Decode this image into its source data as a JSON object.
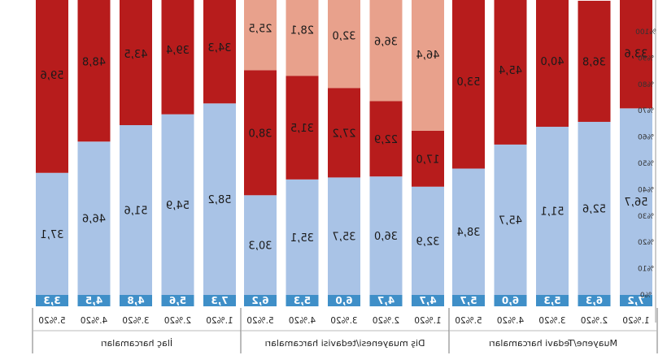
{
  "chart_data": {
    "type": "bar",
    "stacked": true,
    "orientation": "mirrored",
    "y_axis_ticks": [
      "%0",
      "%10",
      "%20",
      "%30",
      "%40",
      "%50",
      "%60",
      "%70",
      "%80",
      "%90",
      "%100"
    ],
    "ylim": [
      0,
      100
    ],
    "groups": [
      {
        "label": "İlaç harcamaları",
        "categories": [
          "5.%20",
          "4.%20",
          "3.%20",
          "2.%20",
          "1.%20"
        ],
        "base_band": [
          3.3,
          4.5,
          4.8,
          5.6,
          7.3
        ],
        "light_blue": [
          37.1,
          46.6,
          51.6,
          54.9,
          58.2
        ],
        "dark_red": [
          59.6,
          48.8,
          43.5,
          39.4,
          34.3
        ],
        "light_red": [
          null,
          null,
          null,
          null,
          null
        ]
      },
      {
        "label": "Diş muayenesi/tedavisi harcamaları",
        "categories": [
          "5.%20",
          "4.%20",
          "3.%20",
          "2.%20",
          "1.%20"
        ],
        "base_band": [
          6.2,
          5.3,
          6.0,
          4.7,
          4.7
        ],
        "light_blue": [
          30.3,
          35.1,
          35.7,
          36.0,
          32.9
        ],
        "dark_red": [
          38.0,
          31.5,
          27.2,
          22.9,
          17.0
        ],
        "light_red": [
          25.5,
          28.1,
          32.0,
          36.6,
          46.4
        ]
      },
      {
        "label": "Muayene/Tedavi harcamaları",
        "categories": [
          "5.%20",
          "4.%20",
          "3.%20",
          "2.%20",
          "1.%20"
        ],
        "base_band": [
          5.7,
          6.0,
          5.3,
          6.3,
          7.2
        ],
        "light_blue": [
          38.4,
          45.7,
          51.1,
          52.6,
          56.7
        ],
        "dark_red": [
          53.0,
          45.4,
          40.0,
          36.8,
          33.6
        ],
        "light_red": [
          null,
          null,
          null,
          null,
          null
        ]
      }
    ],
    "colors": {
      "base_band": "#3f8fc8",
      "light_blue": "#a9c3e6",
      "dark_red": "#b71c1c",
      "light_red": "#e8a18c"
    }
  }
}
